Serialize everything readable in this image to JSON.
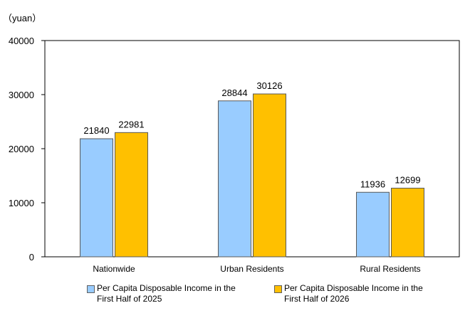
{
  "chart_data": {
    "type": "bar",
    "unit_label": "（yuan）",
    "categories": [
      "Nationwide",
      "Urban Residents",
      "Rural Residents"
    ],
    "series": [
      {
        "name": "Per Capita Disposable Income in the First  Half of 2025",
        "values": [
          21840,
          28844,
          11936
        ],
        "color": "#99CCFF"
      },
      {
        "name": "Per Capita Disposable Income in the First  Half of 2026",
        "values": [
          22981,
          30126,
          12699
        ],
        "color": "#FFC000"
      }
    ],
    "ylim": [
      0,
      40000
    ],
    "yticks": [
      0,
      10000,
      20000,
      30000,
      40000
    ],
    "data_labels": true,
    "grid": false,
    "legend_position": "bottom"
  }
}
